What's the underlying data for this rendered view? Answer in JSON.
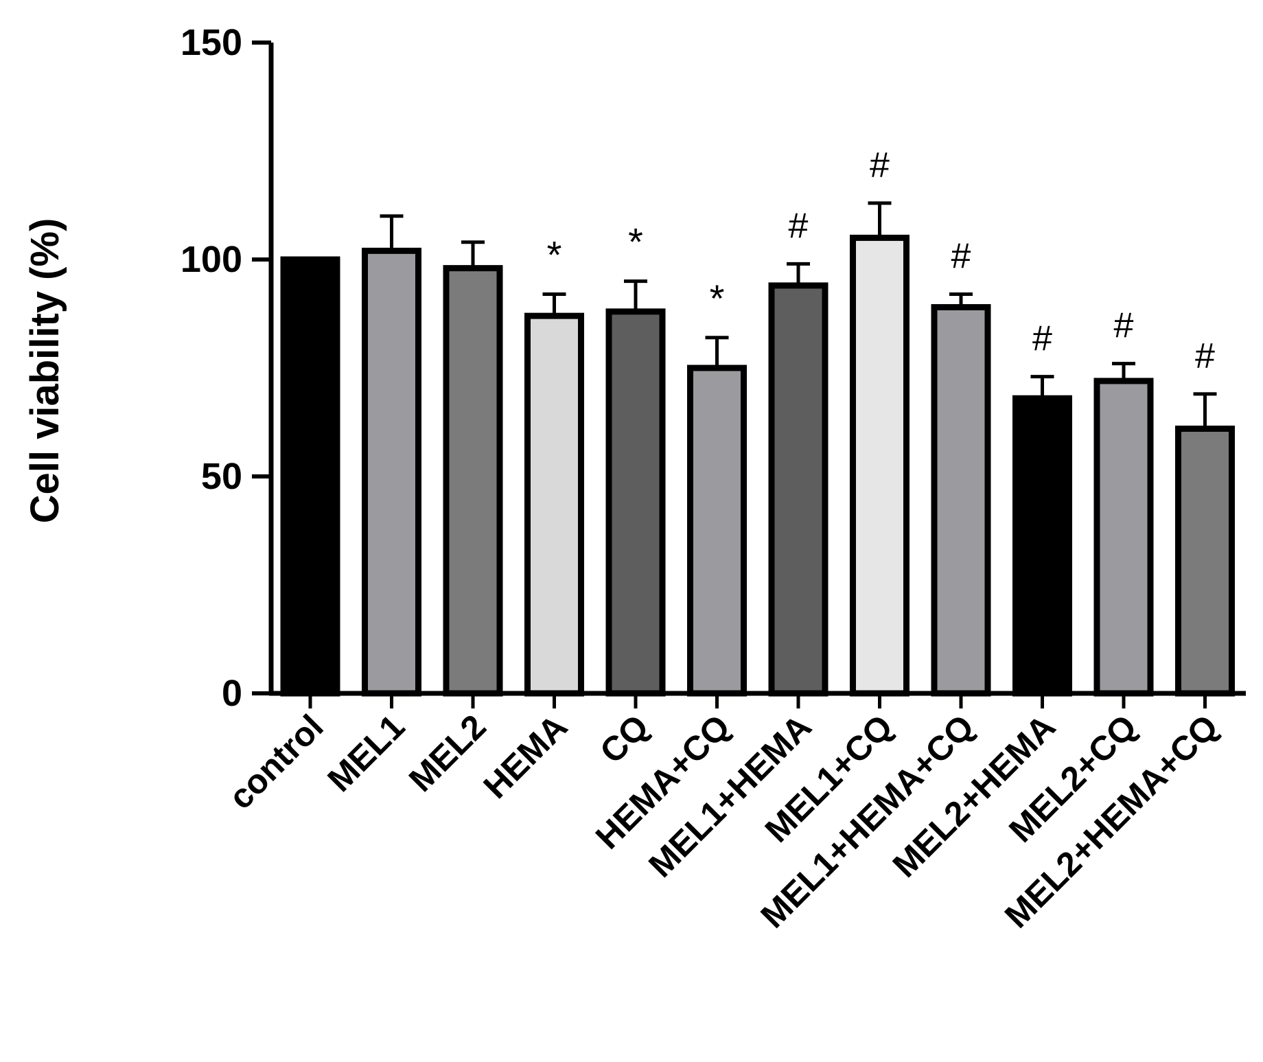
{
  "chart_data": {
    "type": "bar",
    "title": "",
    "xlabel": "",
    "ylabel": "Cell viability (%)",
    "ylim": [
      0,
      150
    ],
    "yticks": [
      0,
      50,
      100,
      150
    ],
    "grid": false,
    "categories": [
      "control",
      "MEL1",
      "MEL2",
      "HEMA",
      "CQ",
      "HEMA+CQ",
      "MEL1+HEMA",
      "MEL1+CQ",
      "MEL1+HEMA+CQ",
      "MEL2+HEMA",
      "MEL2+CQ",
      "MEL2+HEMA+CQ"
    ],
    "values": [
      100,
      102,
      98,
      87,
      88,
      75,
      94,
      105,
      89,
      68,
      72,
      61
    ],
    "error_upper": [
      0,
      8,
      6,
      5,
      7,
      7,
      5,
      8,
      3,
      5,
      4,
      8
    ],
    "annotations": [
      "",
      "",
      "",
      "*",
      "*",
      "*",
      "#",
      "#",
      "#",
      "#",
      "#",
      "#"
    ],
    "bar_colors": [
      "#000000",
      "#9a9a9f",
      "#7b7b7b",
      "#d9d9d9",
      "#5e5e5e",
      "#9a9a9f",
      "#5e5e5e",
      "#e6e6e6",
      "#9a9a9f",
      "#000000",
      "#9a9a9f",
      "#7b7b7b"
    ]
  }
}
